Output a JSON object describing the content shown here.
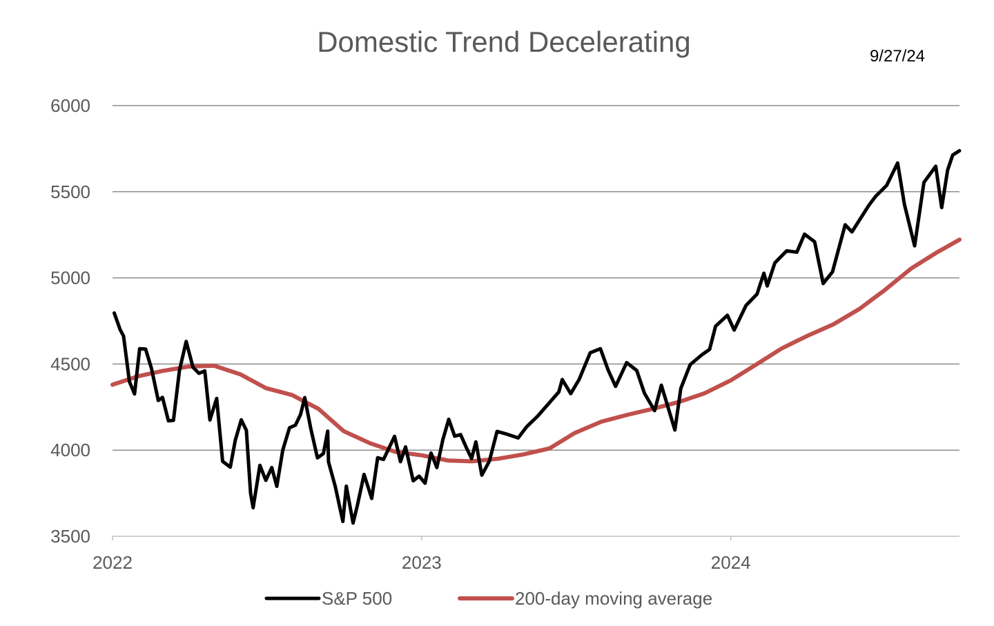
{
  "chart_data": {
    "type": "line",
    "title": "Domestic Trend Decelerating",
    "date_label": "9/27/24",
    "xlabel": "",
    "ylabel": "",
    "ylim": [
      3500,
      6000
    ],
    "yticks": [
      3500,
      4000,
      4500,
      5000,
      5500,
      6000
    ],
    "xlim": [
      "2022-01-01",
      "2024-09-27"
    ],
    "xticks": [
      {
        "label": "2022",
        "date": "2022-01-01"
      },
      {
        "label": "2023",
        "date": "2023-01-01"
      },
      {
        "label": "2024",
        "date": "2024-01-01"
      }
    ],
    "grid": "horizontal",
    "legend_position": "bottom",
    "series": [
      {
        "name": "S&P 500",
        "color": "#000000",
        "points": [
          [
            "2022-01-03",
            4796
          ],
          [
            "2022-01-10",
            4700
          ],
          [
            "2022-01-14",
            4662
          ],
          [
            "2022-01-21",
            4398
          ],
          [
            "2022-01-27",
            4326
          ],
          [
            "2022-02-02",
            4589
          ],
          [
            "2022-02-09",
            4587
          ],
          [
            "2022-02-16",
            4475
          ],
          [
            "2022-02-24",
            4288
          ],
          [
            "2022-03-01",
            4306
          ],
          [
            "2022-03-08",
            4170
          ],
          [
            "2022-03-14",
            4173
          ],
          [
            "2022-03-21",
            4461
          ],
          [
            "2022-03-29",
            4631
          ],
          [
            "2022-04-06",
            4481
          ],
          [
            "2022-04-13",
            4446
          ],
          [
            "2022-04-20",
            4460
          ],
          [
            "2022-04-26",
            4175
          ],
          [
            "2022-05-04",
            4300
          ],
          [
            "2022-05-11",
            3935
          ],
          [
            "2022-05-20",
            3901
          ],
          [
            "2022-05-26",
            4058
          ],
          [
            "2022-06-02",
            4176
          ],
          [
            "2022-06-08",
            4115
          ],
          [
            "2022-06-13",
            3750
          ],
          [
            "2022-06-16",
            3666
          ],
          [
            "2022-06-24",
            3912
          ],
          [
            "2022-07-01",
            3825
          ],
          [
            "2022-07-08",
            3899
          ],
          [
            "2022-07-14",
            3790
          ],
          [
            "2022-07-21",
            3999
          ],
          [
            "2022-07-29",
            4130
          ],
          [
            "2022-08-05",
            4145
          ],
          [
            "2022-08-11",
            4207
          ],
          [
            "2022-08-16",
            4305
          ],
          [
            "2022-08-23",
            4128
          ],
          [
            "2022-08-31",
            3955
          ],
          [
            "2022-09-07",
            3980
          ],
          [
            "2022-09-12",
            4110
          ],
          [
            "2022-09-13",
            3932
          ],
          [
            "2022-09-21",
            3789
          ],
          [
            "2022-09-30",
            3586
          ],
          [
            "2022-10-04",
            3791
          ],
          [
            "2022-10-12",
            3577
          ],
          [
            "2022-10-17",
            3677
          ],
          [
            "2022-10-25",
            3859
          ],
          [
            "2022-11-03",
            3720
          ],
          [
            "2022-11-10",
            3956
          ],
          [
            "2022-11-17",
            3946
          ],
          [
            "2022-11-30",
            4080
          ],
          [
            "2022-12-07",
            3933
          ],
          [
            "2022-12-13",
            4019
          ],
          [
            "2022-12-22",
            3822
          ],
          [
            "2022-12-29",
            3849
          ],
          [
            "2023-01-05",
            3808
          ],
          [
            "2023-01-12",
            3983
          ],
          [
            "2023-01-19",
            3899
          ],
          [
            "2023-01-26",
            4060
          ],
          [
            "2023-02-02",
            4179
          ],
          [
            "2023-02-09",
            4081
          ],
          [
            "2023-02-16",
            4090
          ],
          [
            "2023-02-23",
            4012
          ],
          [
            "2023-03-01",
            3951
          ],
          [
            "2023-03-06",
            4048
          ],
          [
            "2023-03-13",
            3855
          ],
          [
            "2023-03-22",
            3937
          ],
          [
            "2023-03-31",
            4109
          ],
          [
            "2023-04-12",
            4092
          ],
          [
            "2023-04-25",
            4071
          ],
          [
            "2023-05-05",
            4136
          ],
          [
            "2023-05-18",
            4198
          ],
          [
            "2023-06-02",
            4282
          ],
          [
            "2023-06-12",
            4338
          ],
          [
            "2023-06-16",
            4410
          ],
          [
            "2023-06-26",
            4328
          ],
          [
            "2023-07-06",
            4411
          ],
          [
            "2023-07-19",
            4565
          ],
          [
            "2023-07-31",
            4589
          ],
          [
            "2023-08-09",
            4467
          ],
          [
            "2023-08-18",
            4370
          ],
          [
            "2023-08-31",
            4508
          ],
          [
            "2023-09-12",
            4462
          ],
          [
            "2023-09-21",
            4330
          ],
          [
            "2023-10-03",
            4229
          ],
          [
            "2023-10-11",
            4377
          ],
          [
            "2023-10-27",
            4117
          ],
          [
            "2023-11-03",
            4358
          ],
          [
            "2023-11-14",
            4496
          ],
          [
            "2023-11-28",
            4554
          ],
          [
            "2023-12-07",
            4585
          ],
          [
            "2023-12-14",
            4719
          ],
          [
            "2023-12-28",
            4783
          ],
          [
            "2024-01-05",
            4697
          ],
          [
            "2024-01-19",
            4840
          ],
          [
            "2024-02-01",
            4906
          ],
          [
            "2024-02-09",
            5027
          ],
          [
            "2024-02-13",
            4953
          ],
          [
            "2024-02-22",
            5087
          ],
          [
            "2024-03-07",
            5157
          ],
          [
            "2024-03-19",
            5149
          ],
          [
            "2024-03-28",
            5254
          ],
          [
            "2024-04-09",
            5209
          ],
          [
            "2024-04-19",
            4967
          ],
          [
            "2024-04-30",
            5035
          ],
          [
            "2024-05-15",
            5308
          ],
          [
            "2024-05-23",
            5267
          ],
          [
            "2024-06-12",
            5421
          ],
          [
            "2024-06-20",
            5473
          ],
          [
            "2024-07-03",
            5537
          ],
          [
            "2024-07-16",
            5667
          ],
          [
            "2024-07-24",
            5427
          ],
          [
            "2024-08-05",
            5186
          ],
          [
            "2024-08-16",
            5554
          ],
          [
            "2024-08-30",
            5648
          ],
          [
            "2024-09-06",
            5408
          ],
          [
            "2024-09-13",
            5626
          ],
          [
            "2024-09-19",
            5713
          ],
          [
            "2024-09-27",
            5738
          ]
        ]
      },
      {
        "name": "200-day moving average",
        "color": "#c0504d",
        "points": [
          [
            "2022-01-01",
            4380
          ],
          [
            "2022-02-01",
            4430
          ],
          [
            "2022-03-01",
            4460
          ],
          [
            "2022-04-01",
            4485
          ],
          [
            "2022-05-01",
            4490
          ],
          [
            "2022-06-01",
            4440
          ],
          [
            "2022-07-01",
            4360
          ],
          [
            "2022-08-01",
            4320
          ],
          [
            "2022-09-01",
            4240
          ],
          [
            "2022-10-01",
            4110
          ],
          [
            "2022-11-01",
            4040
          ],
          [
            "2022-12-01",
            3990
          ],
          [
            "2023-01-01",
            3970
          ],
          [
            "2023-02-01",
            3940
          ],
          [
            "2023-03-01",
            3935
          ],
          [
            "2023-04-01",
            3950
          ],
          [
            "2023-05-01",
            3975
          ],
          [
            "2023-06-01",
            4010
          ],
          [
            "2023-07-01",
            4100
          ],
          [
            "2023-08-01",
            4165
          ],
          [
            "2023-09-01",
            4205
          ],
          [
            "2023-10-01",
            4240
          ],
          [
            "2023-11-01",
            4280
          ],
          [
            "2023-12-01",
            4330
          ],
          [
            "2024-01-01",
            4405
          ],
          [
            "2024-02-01",
            4500
          ],
          [
            "2024-03-01",
            4590
          ],
          [
            "2024-04-01",
            4665
          ],
          [
            "2024-05-01",
            4730
          ],
          [
            "2024-06-01",
            4820
          ],
          [
            "2024-07-01",
            4930
          ],
          [
            "2024-08-01",
            5055
          ],
          [
            "2024-09-01",
            5150
          ],
          [
            "2024-09-27",
            5222
          ]
        ]
      }
    ]
  }
}
